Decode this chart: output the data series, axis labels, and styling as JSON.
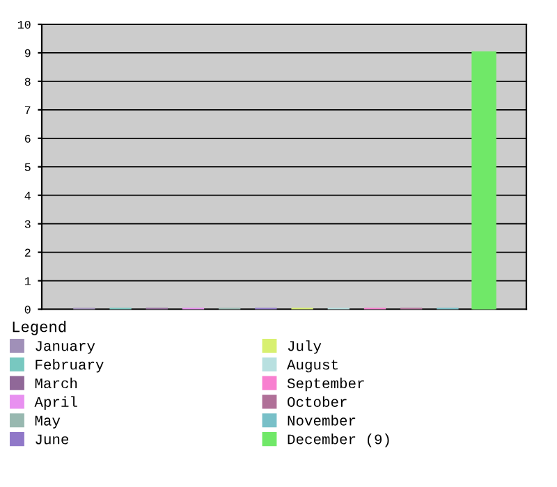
{
  "chart_data": {
    "type": "bar",
    "legend_title": "Legend",
    "categories": [
      null
    ],
    "series": [
      {
        "name": "January",
        "color": "#a090b8",
        "values": [
          0
        ]
      },
      {
        "name": "February",
        "color": "#78c8c0",
        "values": [
          0
        ]
      },
      {
        "name": "March",
        "color": "#906898",
        "values": [
          0
        ]
      },
      {
        "name": "April",
        "color": "#e890f0",
        "values": [
          0
        ]
      },
      {
        "name": "May",
        "color": "#98b8b0",
        "values": [
          0
        ]
      },
      {
        "name": "June",
        "color": "#9078c8",
        "values": [
          0
        ]
      },
      {
        "name": "July",
        "color": "#d8f070",
        "values": [
          0
        ]
      },
      {
        "name": "August",
        "color": "#b8e0e0",
        "values": [
          0
        ]
      },
      {
        "name": "September",
        "color": "#f880d0",
        "values": [
          0
        ]
      },
      {
        "name": "October",
        "color": "#b07098",
        "values": [
          0
        ]
      },
      {
        "name": "November",
        "color": "#78c0c8",
        "values": [
          0
        ]
      },
      {
        "name": "December (9)",
        "color": "#70e868",
        "values": [
          9
        ]
      }
    ],
    "ylim": [
      0,
      10
    ],
    "yticks": [
      0,
      1,
      2,
      3,
      4,
      5,
      6,
      7,
      8,
      9,
      10
    ],
    "grid": "y",
    "legend": "bottom"
  }
}
